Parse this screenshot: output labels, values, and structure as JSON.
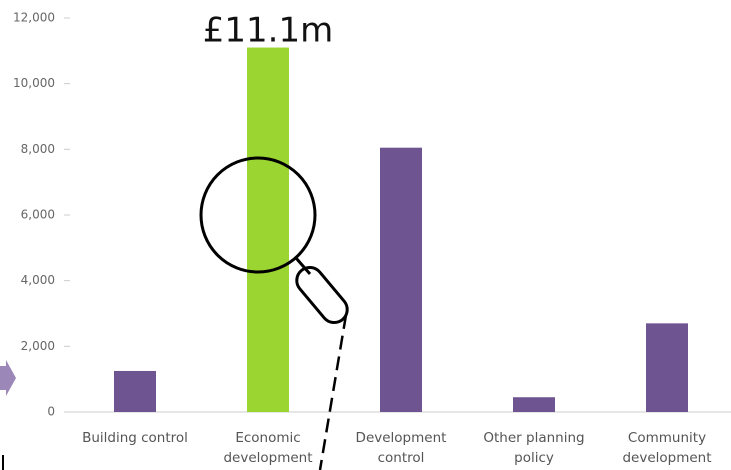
{
  "chart_data": {
    "type": "bar",
    "categories": [
      "Building control",
      "Economic development",
      "Development control",
      "Other planning policy",
      "Community development"
    ],
    "values": [
      1250,
      11100,
      8050,
      450,
      2700
    ],
    "colors": [
      "#6e5591",
      "#9ad531",
      "#6e5591",
      "#6e5591",
      "#6e5591"
    ],
    "annotation": "£11.1m",
    "ylim": [
      0,
      12000
    ],
    "yticks": [
      0,
      {
        "value": 2000,
        "label": "2,000"
      },
      {
        "value": 4000,
        "label": "4,000"
      },
      {
        "value": 6000,
        "label": "6,000"
      },
      {
        "value": 8000,
        "label": "8,000"
      },
      {
        "value": 10000,
        "label": "10,000"
      },
      {
        "value": 12000,
        "label": "12,000"
      }
    ],
    "grid": false
  }
}
